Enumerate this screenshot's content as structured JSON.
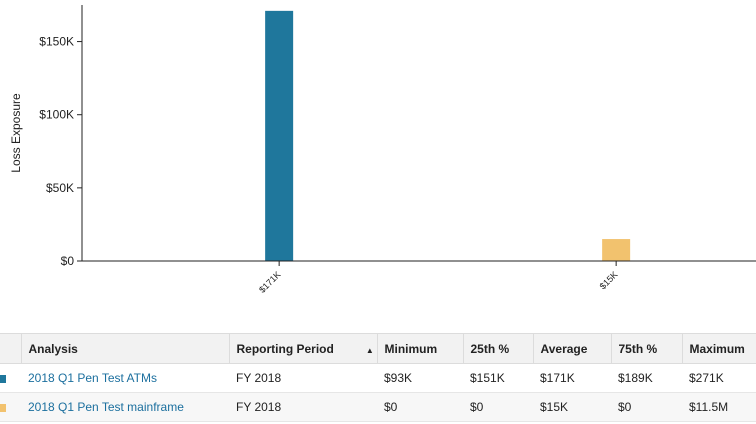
{
  "chart_data": {
    "type": "bar",
    "categories": [
      "$171K",
      "$15K"
    ],
    "values": [
      171000,
      15000
    ],
    "colors": [
      "#1f779c",
      "#f2c26e"
    ],
    "ylabel": "Loss Exposure",
    "ylim": [
      0,
      175000
    ],
    "yticks": [
      0,
      50000,
      100000,
      150000
    ],
    "yticklabels": [
      "$0",
      "$50K",
      "$100K",
      "$150K"
    ],
    "grid": false
  },
  "table": {
    "headers": {
      "analysis": "Analysis",
      "period": "Reporting Period",
      "minimum": "Minimum",
      "p25": "25th %",
      "average": "Average",
      "p75": "75th %",
      "maximum": "Maximum"
    },
    "sort_icon": "sort-ascending-icon",
    "rows": [
      {
        "color": "#1f779c",
        "analysis": "2018 Q1 Pen Test ATMs",
        "period": "FY 2018",
        "minimum": "$93K",
        "p25": "$151K",
        "average": "$171K",
        "p75": "$189K",
        "maximum": "$271K"
      },
      {
        "color": "#f2c26e",
        "analysis": "2018 Q1 Pen Test mainframe",
        "period": "FY 2018",
        "minimum": "$0",
        "p25": "$0",
        "average": "$15K",
        "p75": "$0",
        "maximum": "$11.5M"
      }
    ]
  }
}
